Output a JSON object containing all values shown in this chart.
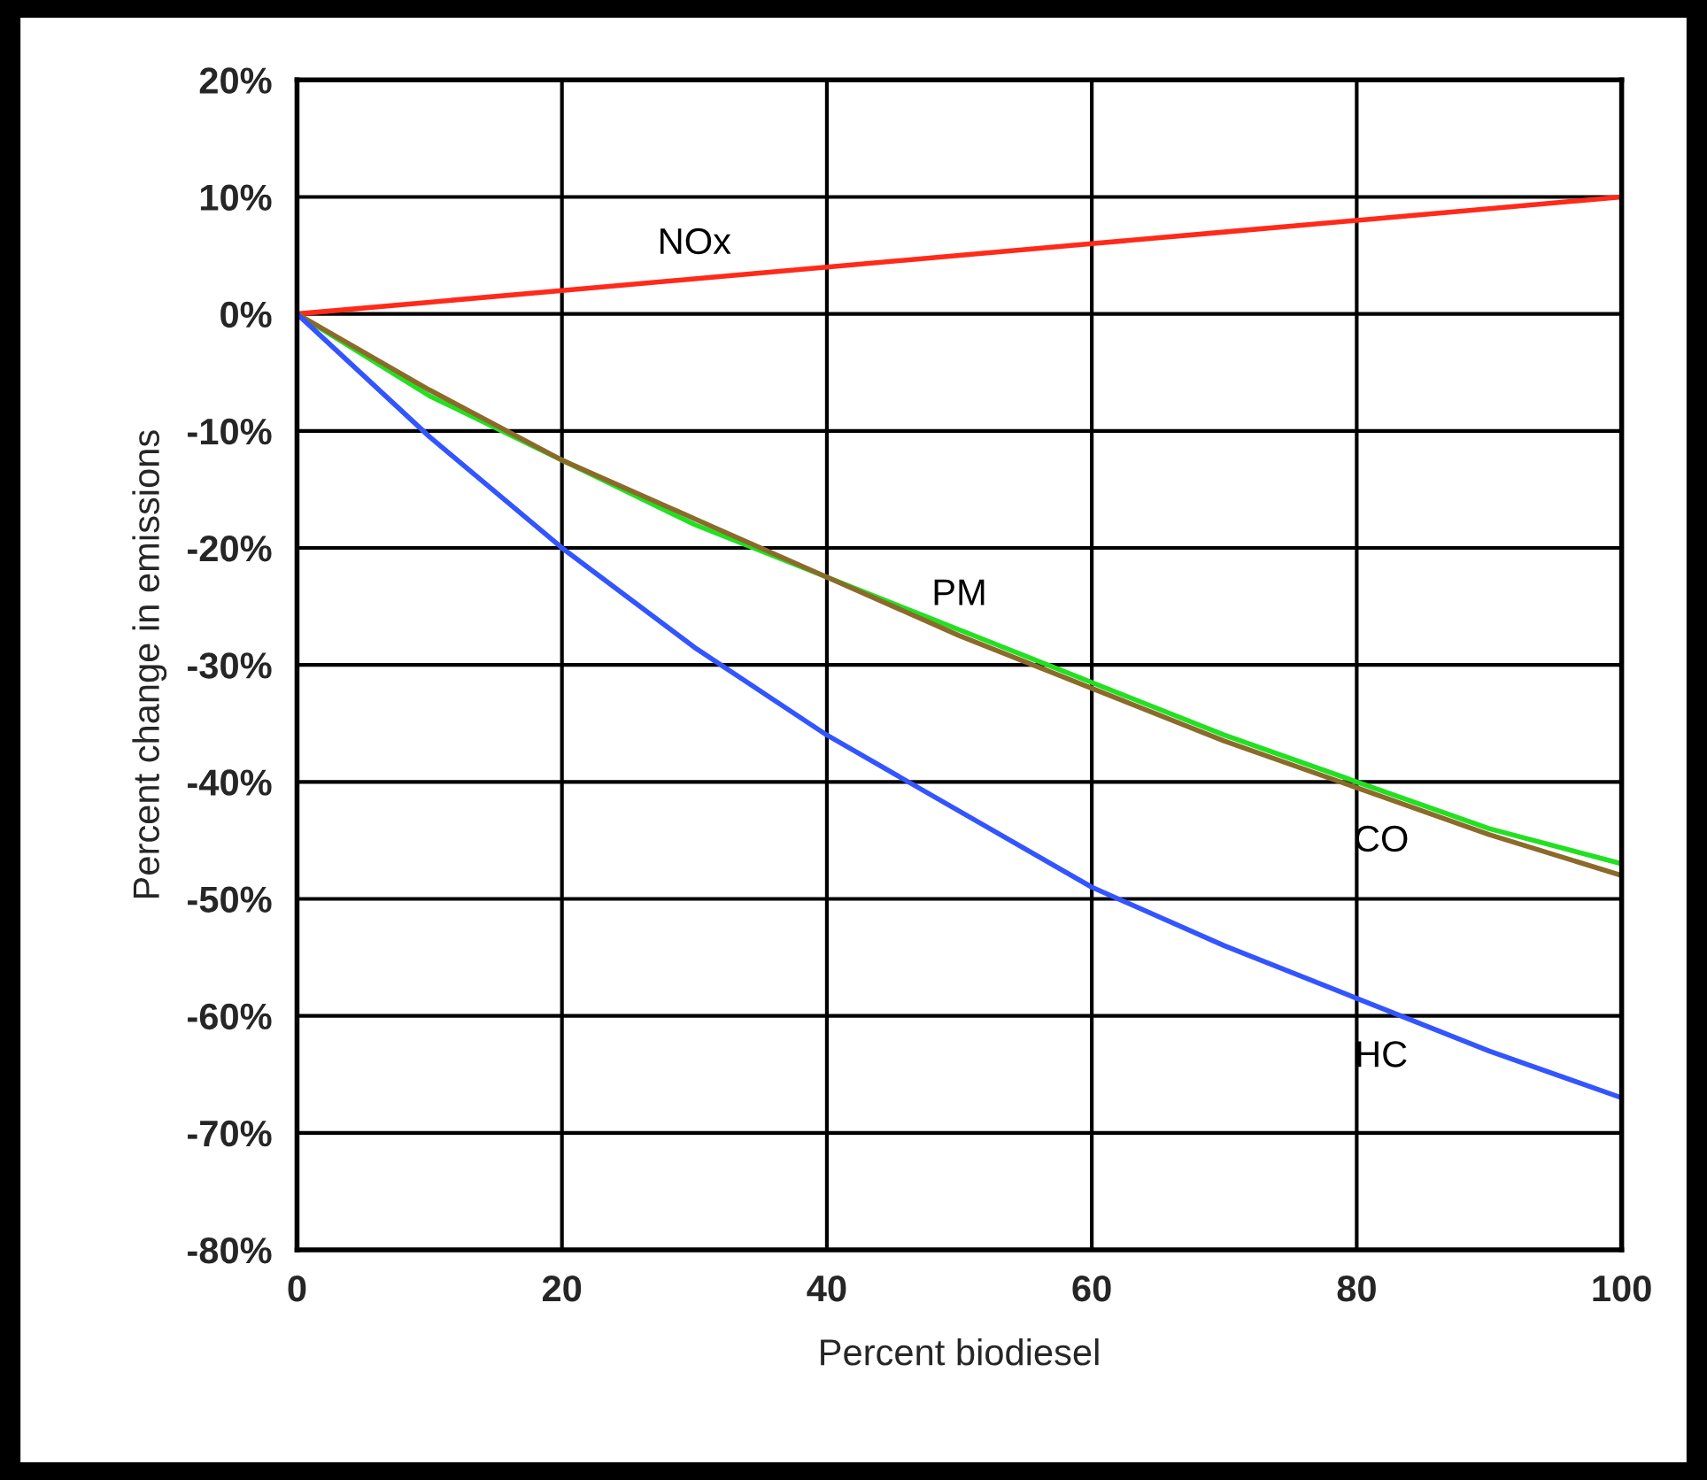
{
  "chart_data": {
    "type": "line",
    "xlabel": "Percent biodiesel",
    "ylabel": "Percent change in emissions",
    "x": [
      0,
      10,
      20,
      30,
      40,
      50,
      60,
      70,
      80,
      90,
      100
    ],
    "series": [
      {
        "name": "NOx",
        "color": "#ff2a1a",
        "values": [
          0,
          1,
          2,
          3,
          4,
          5,
          6,
          7,
          8,
          9,
          10
        ]
      },
      {
        "name": "PM",
        "color": "#22e022",
        "values": [
          0,
          -7,
          -12.5,
          -18,
          -22.5,
          -27,
          -31.5,
          -36,
          -40,
          -44,
          -47
        ]
      },
      {
        "name": "CO",
        "color": "#8b6a2a",
        "values": [
          0,
          -6.5,
          -12.5,
          -17.5,
          -22.5,
          -27.5,
          -32,
          -36.5,
          -40.5,
          -44.5,
          -48
        ]
      },
      {
        "name": "HC",
        "color": "#3355ff",
        "values": [
          0,
          -10.5,
          -20,
          -28.5,
          -36,
          -42.5,
          -49,
          -54,
          -58.5,
          -63,
          -67
        ]
      }
    ],
    "xlim": [
      0,
      100
    ],
    "xticks": [
      0,
      20,
      40,
      60,
      80,
      100
    ],
    "ylim": [
      -80,
      20
    ],
    "yticks": [
      {
        "value": 20,
        "label": "20%"
      },
      {
        "value": 10,
        "label": "10%"
      },
      {
        "value": 0,
        "label": "0%"
      },
      {
        "value": -10,
        "label": "-10%"
      },
      {
        "value": -20,
        "label": "-20%"
      },
      {
        "value": -30,
        "label": "-30%"
      },
      {
        "value": -40,
        "label": "-40%"
      },
      {
        "value": -50,
        "label": "-50%"
      },
      {
        "value": -60,
        "label": "-60%"
      },
      {
        "value": -70,
        "label": "-70%"
      },
      {
        "value": -80,
        "label": "-80%"
      }
    ],
    "grid": true,
    "legend": false,
    "marker": "none",
    "line_style": "solid"
  }
}
